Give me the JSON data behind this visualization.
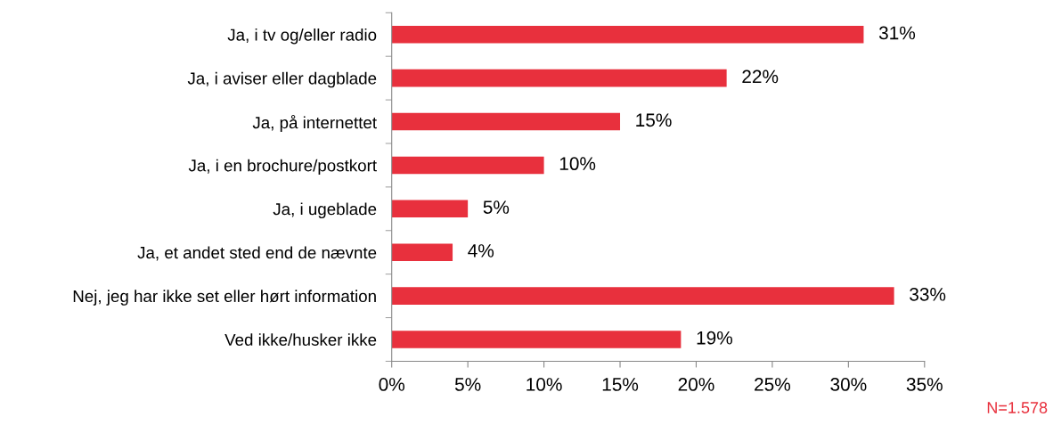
{
  "chart_data": {
    "type": "bar",
    "orientation": "horizontal",
    "categories": [
      "Ja, i tv og/eller radio",
      "Ja, i aviser eller dagblade",
      "Ja, på internettet",
      "Ja, i en brochure/postkort",
      "Ja, i ugeblade",
      "Ja, et andet sted end de nævnte",
      "Nej, jeg har ikke set eller hørt information",
      "Ved ikke/husker ikke"
    ],
    "values": [
      31,
      22,
      15,
      10,
      5,
      4,
      33,
      19
    ],
    "value_labels": [
      "31%",
      "22%",
      "15%",
      "10%",
      "5%",
      "4%",
      "33%",
      "19%"
    ],
    "color": "#e8303d",
    "xlim": [
      0,
      35
    ],
    "xticks": [
      {
        "value": 0,
        "label": "0%"
      },
      {
        "value": 5,
        "label": "5%"
      },
      {
        "value": 10,
        "label": "10%"
      },
      {
        "value": 15,
        "label": "15%"
      },
      {
        "value": 20,
        "label": "20%"
      },
      {
        "value": 25,
        "label": "25%"
      },
      {
        "value": 30,
        "label": "30%"
      },
      {
        "value": 35,
        "label": "35%"
      }
    ],
    "grid": false,
    "legend": false,
    "annotations": [
      "N=1.578"
    ]
  }
}
